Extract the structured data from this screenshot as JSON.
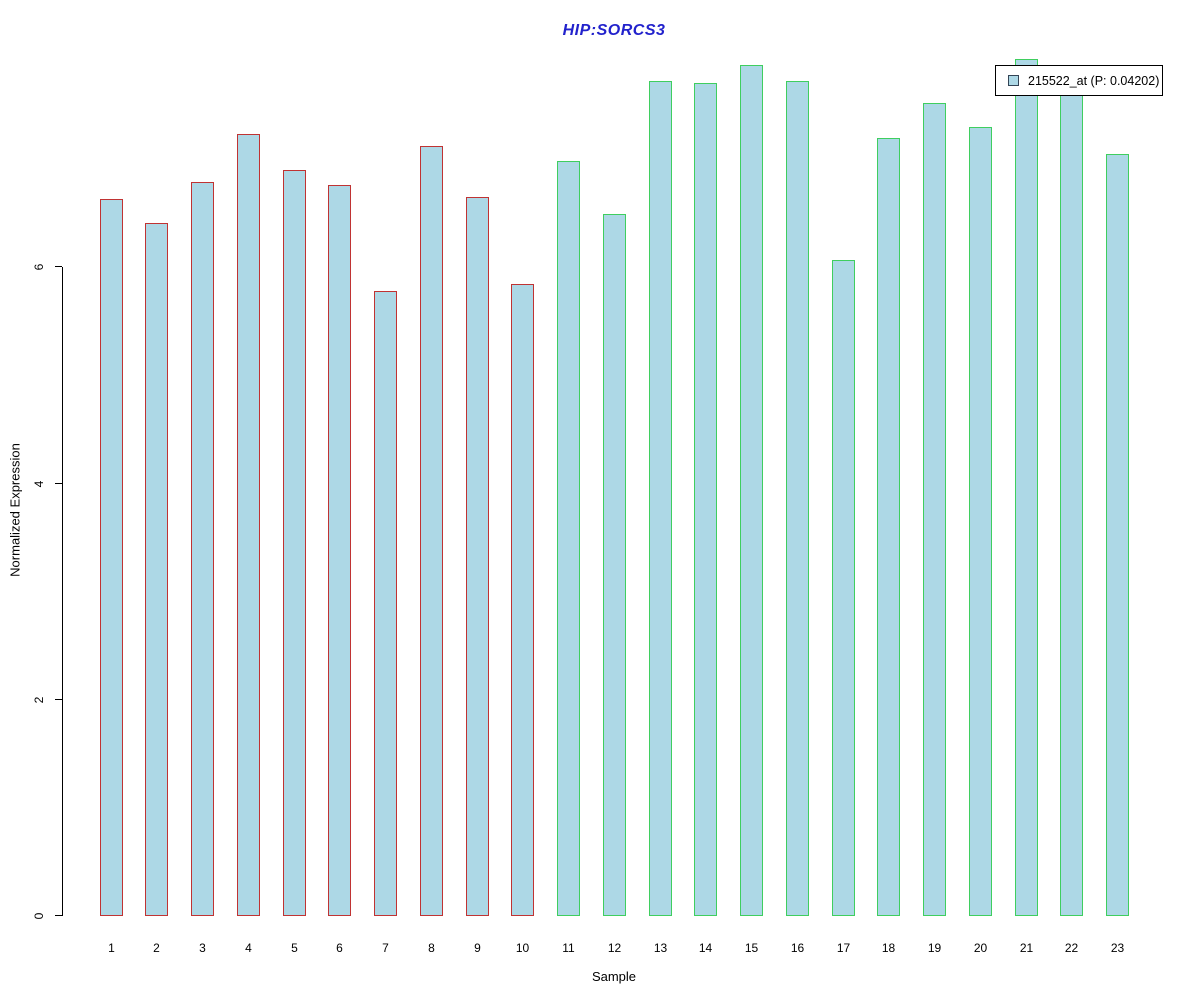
{
  "chart_data": {
    "type": "bar",
    "title": "HIP:SORCS3",
    "title_color": "#2222CC",
    "xlabel": "Sample",
    "ylabel": "Normalized Expression",
    "categories": [
      "1",
      "2",
      "3",
      "4",
      "5",
      "6",
      "7",
      "8",
      "9",
      "10",
      "11",
      "12",
      "13",
      "14",
      "15",
      "16",
      "17",
      "18",
      "19",
      "20",
      "21",
      "22",
      "23"
    ],
    "values": [
      6.63,
      6.41,
      6.79,
      7.23,
      6.9,
      6.76,
      5.78,
      7.12,
      6.65,
      5.85,
      6.98,
      6.49,
      7.72,
      7.71,
      7.87,
      7.72,
      6.07,
      7.2,
      7.52,
      7.3,
      7.93,
      7.75,
      7.05
    ],
    "ylim": [
      0,
      8
    ],
    "yticks": [
      0,
      2,
      4,
      6
    ],
    "grid": false,
    "bar_fill": "#ADD8E6",
    "bar_border_colors": {
      "samples_1_to_10": "#C03333",
      "samples_11_to_23": "#3FCE5F"
    },
    "group_split_index": 10,
    "legend": {
      "position": "topright",
      "label": "215522_at (P: 0.04202)",
      "swatch_fill": "#ADD8E6",
      "swatch_border": "#334455"
    }
  }
}
